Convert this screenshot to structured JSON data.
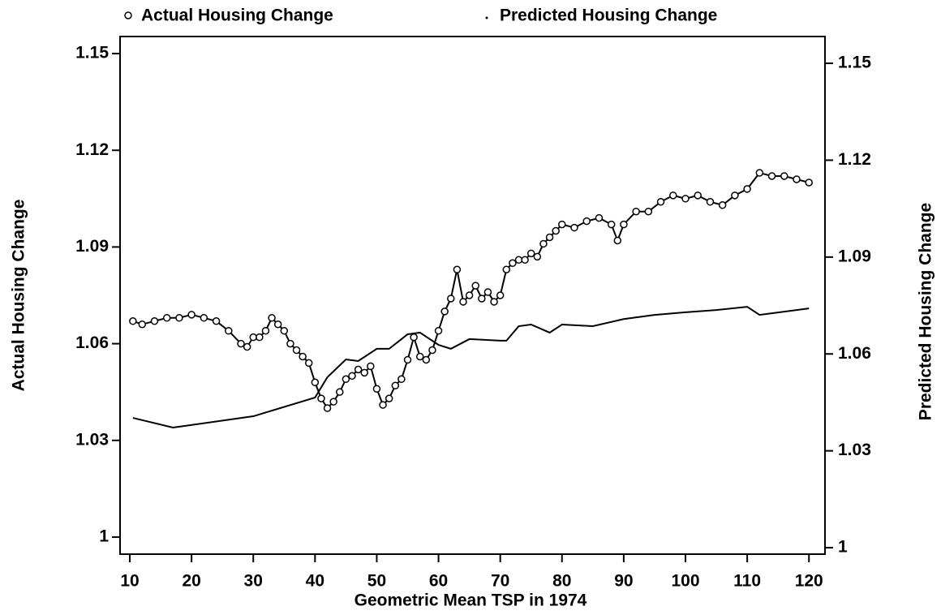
{
  "chart_data": {
    "type": "line",
    "xlabel": "Geometric Mean TSP in 1974",
    "ylabel": "Actual Housing Change",
    "y2label": "Predicted Housing Change",
    "xlim": [
      8.42,
      122.6
    ],
    "xticks": [
      10,
      20,
      30,
      40,
      50,
      60,
      70,
      80,
      90,
      100,
      110,
      120
    ],
    "ylim": [
      0.9947,
      1.1553
    ],
    "yticks": [
      1,
      1.03,
      1.06,
      1.09,
      1.12,
      1.15
    ],
    "y2lim": [
      0.998,
      1.1583
    ],
    "y2ticks": [
      1,
      1.03,
      1.06,
      1.09,
      1.12,
      1.15
    ],
    "series": [
      {
        "name": "Actual Housing Change",
        "color": "#000000",
        "marker": "circle",
        "x": [
          10.5,
          12,
          14,
          16,
          18,
          20,
          22,
          24,
          26,
          28,
          29,
          30,
          31,
          32,
          33,
          34,
          35,
          36,
          37,
          38,
          39,
          40,
          41,
          42,
          43,
          44,
          45,
          46,
          47,
          48,
          49,
          50,
          51,
          52,
          53,
          54,
          55,
          56,
          57,
          58,
          59,
          60,
          61,
          62,
          63,
          64,
          65,
          66,
          67,
          68,
          69,
          70,
          71,
          72,
          73,
          74,
          75,
          76,
          77,
          78,
          79,
          80,
          82,
          84,
          86,
          88,
          89,
          90,
          92,
          94,
          96,
          98,
          100,
          102,
          104,
          106,
          108,
          110,
          112,
          114,
          116,
          118,
          120
        ],
        "values": [
          1.067,
          1.066,
          1.067,
          1.068,
          1.068,
          1.069,
          1.068,
          1.067,
          1.064,
          1.06,
          1.059,
          1.062,
          1.062,
          1.064,
          1.068,
          1.066,
          1.064,
          1.06,
          1.058,
          1.056,
          1.054,
          1.048,
          1.043,
          1.04,
          1.042,
          1.045,
          1.049,
          1.05,
          1.052,
          1.051,
          1.053,
          1.046,
          1.041,
          1.043,
          1.047,
          1.049,
          1.055,
          1.062,
          1.056,
          1.055,
          1.058,
          1.064,
          1.07,
          1.074,
          1.083,
          1.073,
          1.075,
          1.078,
          1.074,
          1.076,
          1.073,
          1.075,
          1.083,
          1.085,
          1.086,
          1.086,
          1.088,
          1.087,
          1.091,
          1.093,
          1.095,
          1.097,
          1.096,
          1.098,
          1.099,
          1.097,
          1.092,
          1.097,
          1.101,
          1.101,
          1.104,
          1.106,
          1.105,
          1.106,
          1.104,
          1.103,
          1.106,
          1.108,
          1.113,
          1.112,
          1.112,
          1.111,
          1.11
        ]
      },
      {
        "name": "Predicted Housing Change",
        "color": "#000000",
        "marker": "dot",
        "axis": "y2",
        "x": [
          10.5,
          17,
          30,
          40,
          42,
          45,
          47,
          50,
          52,
          55,
          57,
          60,
          62,
          65,
          70,
          71,
          73,
          75,
          78,
          80,
          85,
          90,
          95,
          100,
          105,
          110,
          112,
          120
        ],
        "values": [
          1.0402,
          1.0372,
          1.0407,
          1.0465,
          1.0528,
          1.0583,
          1.0578,
          1.0616,
          1.0616,
          1.0661,
          1.0666,
          1.0628,
          1.0616,
          1.0646,
          1.0641,
          1.0641,
          1.0686,
          1.0691,
          1.0666,
          1.0691,
          1.0686,
          1.0708,
          1.0721,
          1.0729,
          1.0736,
          1.0746,
          1.0721,
          1.0741
        ]
      }
    ]
  }
}
